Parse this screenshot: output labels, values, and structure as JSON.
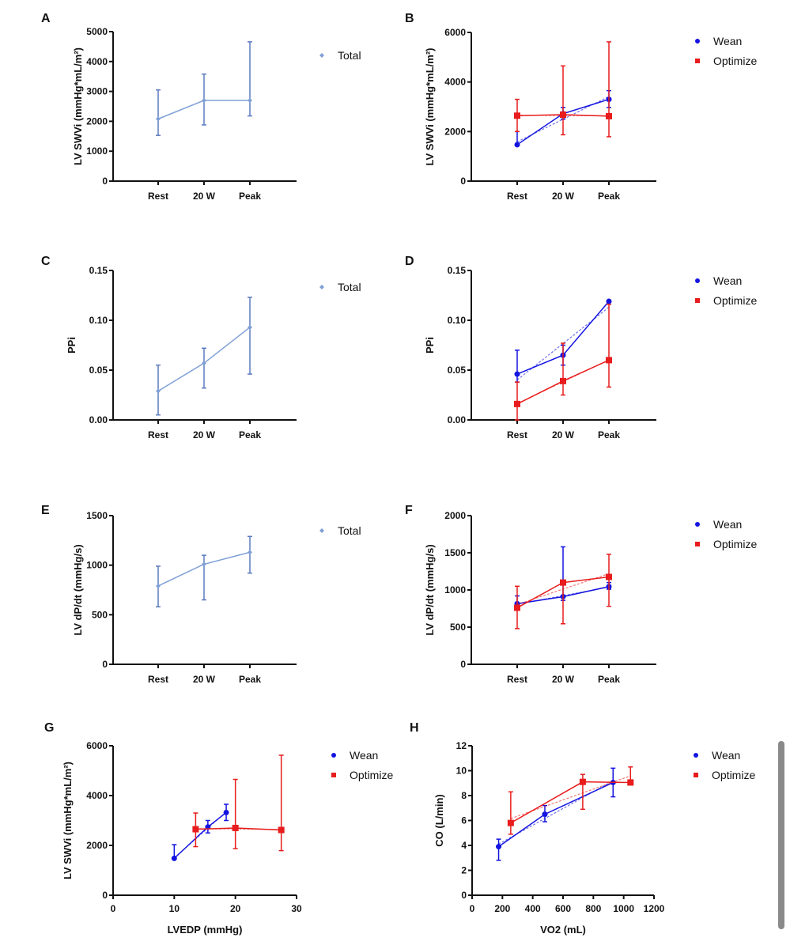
{
  "chart_data": [
    {
      "panel": "A",
      "type": "line",
      "ylabel": "LV SWVi (mmHg*mL/m²)",
      "xlabel": "",
      "categories": [
        "Rest",
        "20 W",
        "Peak"
      ],
      "ylim": [
        0,
        5000
      ],
      "yticks": [
        "0",
        "1000",
        "2000",
        "3000",
        "4000",
        "5000"
      ],
      "trendline": false,
      "legend_position": "right",
      "series": [
        {
          "name": "Total",
          "color": "#7f9fd6",
          "err_color": "#5b7bbf",
          "marker": "diamond",
          "values": [
            2080,
            2700,
            2700
          ],
          "err_low": [
            1530,
            1880,
            2180
          ],
          "err_high": [
            3050,
            3580,
            4660
          ]
        }
      ]
    },
    {
      "panel": "B",
      "type": "line",
      "ylabel": "LV SWVi (mmHg*mL/m²)",
      "xlabel": "",
      "categories": [
        "Rest",
        "20 W",
        "Peak"
      ],
      "ylim": [
        0,
        6000
      ],
      "yticks": [
        "0",
        "2000",
        "4000",
        "6000"
      ],
      "trendline": true,
      "legend_position": "right",
      "series": [
        {
          "name": "Wean",
          "color": "#1414e0",
          "marker": "circle",
          "values": [
            1470,
            2720,
            3300
          ],
          "err_low": [
            1430,
            2500,
            2970
          ],
          "err_high": [
            2000,
            2970,
            3650
          ]
        },
        {
          "name": "Optimize",
          "color": "#e81c1c",
          "marker": "square",
          "values": [
            2640,
            2680,
            2620
          ],
          "err_low": [
            2000,
            1870,
            1790
          ],
          "err_high": [
            3300,
            4650,
            5620
          ]
        }
      ]
    },
    {
      "panel": "C",
      "type": "line",
      "ylabel": "PPi",
      "xlabel": "",
      "categories": [
        "Rest",
        "20 W",
        "Peak"
      ],
      "ylim": [
        0,
        0.15
      ],
      "yticks": [
        "0.00",
        "0.05",
        "0.10",
        "0.15"
      ],
      "trendline": false,
      "legend_position": "right",
      "series": [
        {
          "name": "Total",
          "color": "#7f9fd6",
          "err_color": "#5b7bbf",
          "marker": "diamond",
          "values": [
            0.029,
            0.057,
            0.093
          ],
          "err_low": [
            0.005,
            0.032,
            0.046
          ],
          "err_high": [
            0.055,
            0.072,
            0.123
          ]
        }
      ]
    },
    {
      "panel": "D",
      "type": "line",
      "ylabel": "PPi",
      "xlabel": "",
      "categories": [
        "Rest",
        "20 W",
        "Peak"
      ],
      "ylim": [
        0,
        0.15
      ],
      "yticks": [
        "0.00",
        "0.05",
        "0.10",
        "0.15"
      ],
      "trendline": true,
      "legend_position": "right",
      "series": [
        {
          "name": "Wean",
          "color": "#1414e0",
          "marker": "circle",
          "values": [
            0.046,
            0.065,
            0.119
          ],
          "err_low": [
            0.038,
            0.055,
            0.119
          ],
          "err_high": [
            0.07,
            0.075,
            0.119
          ]
        },
        {
          "name": "Optimize",
          "color": "#e81c1c",
          "marker": "square",
          "values": [
            0.016,
            0.039,
            0.06
          ],
          "err_low": [
            0,
            0.025,
            0.033
          ],
          "err_high": [
            0.038,
            0.077,
            0.116
          ]
        }
      ]
    },
    {
      "panel": "E",
      "type": "line",
      "ylabel": "LV dP/dt (mmHg/s)",
      "xlabel": "",
      "categories": [
        "Rest",
        "20 W",
        "Peak"
      ],
      "ylim": [
        0,
        1500
      ],
      "yticks": [
        "0",
        "500",
        "1000",
        "1500"
      ],
      "trendline": false,
      "legend_position": "right",
      "series": [
        {
          "name": "Total",
          "color": "#7f9fd6",
          "err_color": "#5b7bbf",
          "marker": "diamond",
          "values": [
            790,
            1010,
            1130
          ],
          "err_low": [
            580,
            650,
            920
          ],
          "err_high": [
            990,
            1100,
            1290
          ]
        }
      ]
    },
    {
      "panel": "F",
      "type": "line",
      "ylabel": "LV dP/dt (mmHg/s)",
      "xlabel": "",
      "categories": [
        "Rest",
        "20 W",
        "Peak"
      ],
      "ylim": [
        0,
        2000
      ],
      "yticks": [
        "0",
        "500",
        "1000",
        "1500",
        "2000"
      ],
      "trendline": true,
      "legend_position": "right",
      "series": [
        {
          "name": "Wean",
          "color": "#1414e0",
          "marker": "circle",
          "values": [
            815,
            910,
            1045
          ],
          "err_low": [
            730,
            860,
            1010
          ],
          "err_high": [
            920,
            1580,
            1100
          ]
        },
        {
          "name": "Optimize",
          "color": "#e81c1c",
          "marker": "square",
          "values": [
            760,
            1100,
            1175
          ],
          "err_low": [
            480,
            545,
            780
          ],
          "err_high": [
            1050,
            1100,
            1480
          ]
        }
      ]
    },
    {
      "panel": "G",
      "type": "scatter",
      "ylabel": "LV SWVi (mmHg*mL/m²)",
      "xlabel": "LVEDP (mmHg)",
      "xlim": [
        0,
        30
      ],
      "xticks": [
        "0",
        "10",
        "20",
        "30"
      ],
      "ylim": [
        0,
        6000
      ],
      "yticks": [
        "0",
        "2000",
        "4000",
        "6000"
      ],
      "trendline": true,
      "legend_position": "right",
      "series": [
        {
          "name": "Wean",
          "color": "#1414e0",
          "marker": "circle",
          "x": [
            10,
            15.5,
            18.5
          ],
          "values": [
            1480,
            2740,
            3320
          ],
          "err_low": [
            1480,
            2500,
            3000
          ],
          "err_high": [
            2030,
            3000,
            3650
          ]
        },
        {
          "name": "Optimize",
          "color": "#e81c1c",
          "marker": "square",
          "x": [
            13.5,
            20,
            27.5
          ],
          "values": [
            2650,
            2700,
            2620
          ],
          "err_low": [
            1950,
            1870,
            1790
          ],
          "err_high": [
            3300,
            4650,
            5620
          ]
        }
      ]
    },
    {
      "panel": "H",
      "type": "scatter",
      "ylabel": "CO (L/min)",
      "xlabel": "VO2 (mL)",
      "xlim": [
        0,
        1200
      ],
      "xticks": [
        "0",
        "200",
        "400",
        "600",
        "800",
        "1000",
        "1200"
      ],
      "ylim": [
        0,
        12
      ],
      "yticks": [
        "0",
        "2",
        "4",
        "6",
        "8",
        "10",
        "12"
      ],
      "trendline": true,
      "legend_position": "right",
      "series": [
        {
          "name": "Wean",
          "color": "#1414e0",
          "marker": "circle",
          "x": [
            175,
            480,
            930
          ],
          "values": [
            3.9,
            6.5,
            9.05
          ],
          "err_low": [
            2.8,
            5.9,
            7.9
          ],
          "err_high": [
            4.5,
            7.2,
            10.2
          ]
        },
        {
          "name": "Optimize",
          "color": "#e81c1c",
          "marker": "square",
          "x": [
            255,
            730,
            1045
          ],
          "values": [
            5.8,
            9.1,
            9.05
          ],
          "err_low": [
            4.9,
            6.9,
            8.9
          ],
          "err_high": [
            8.3,
            9.7,
            10.3
          ]
        }
      ]
    }
  ]
}
